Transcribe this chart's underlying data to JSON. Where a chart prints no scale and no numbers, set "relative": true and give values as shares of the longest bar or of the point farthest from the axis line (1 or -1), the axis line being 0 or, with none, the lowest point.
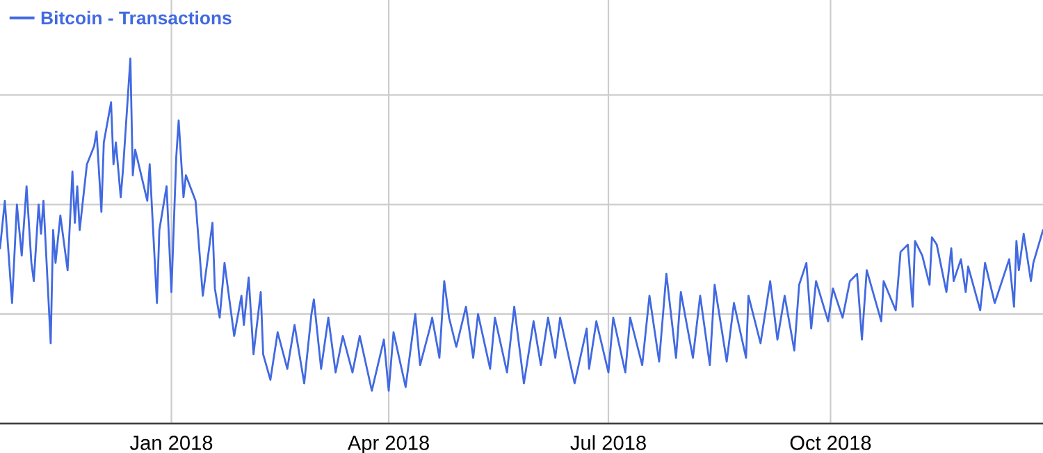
{
  "chart_data": {
    "type": "line",
    "relative": true,
    "grid": true,
    "legend": "top left",
    "tick_labels": "x",
    "marker": "none",
    "line_style": "solid",
    "xlim": [
      "2017-10-22",
      "2018-12-28"
    ],
    "xticks": [
      {
        "value": "2018-01-01",
        "label": "Jan 2018"
      },
      {
        "value": "2018-04-01",
        "label": "Apr 2018"
      },
      {
        "value": "2018-07-01",
        "label": "Jul 2018"
      },
      {
        "value": "2018-10-01",
        "label": "Oct 2018"
      }
    ],
    "series": [
      {
        "name": "Bitcoin - Transactions",
        "color": "#4169e1",
        "x": [
          "2017-10-22",
          "2017-10-24",
          "2017-10-27",
          "2017-10-29",
          "2017-10-31",
          "2017-11-02",
          "2017-11-04",
          "2017-11-05",
          "2017-11-07",
          "2017-11-08",
          "2017-11-09",
          "2017-11-12",
          "2017-11-13",
          "2017-11-14",
          "2017-11-16",
          "2017-11-19",
          "2017-11-21",
          "2017-11-22",
          "2017-11-23",
          "2017-11-24",
          "2017-11-27",
          "2017-11-30",
          "2017-12-01",
          "2017-12-03",
          "2017-12-04",
          "2017-12-07",
          "2017-12-08",
          "2017-12-09",
          "2017-12-11",
          "2017-12-12",
          "2017-12-15",
          "2017-12-16",
          "2017-12-17",
          "2017-12-22",
          "2017-12-23",
          "2017-12-26",
          "2017-12-27",
          "2017-12-30",
          "2018-01-01",
          "2018-01-03",
          "2018-01-04",
          "2018-01-06",
          "2018-01-07",
          "2018-01-11",
          "2018-01-14",
          "2018-01-18",
          "2018-01-19",
          "2018-01-21",
          "2018-01-23",
          "2018-01-27",
          "2018-01-30",
          "2018-01-31",
          "2018-02-02",
          "2018-02-04",
          "2018-02-07",
          "2018-02-08",
          "2018-02-11",
          "2018-02-14",
          "2018-02-18",
          "2018-02-21",
          "2018-02-25",
          "2018-02-28",
          "2018-03-01",
          "2018-03-04",
          "2018-03-07",
          "2018-03-10",
          "2018-03-13",
          "2018-03-17",
          "2018-03-20",
          "2018-03-25",
          "2018-03-30",
          "2018-04-01",
          "2018-04-03",
          "2018-04-08",
          "2018-04-12",
          "2018-04-14",
          "2018-04-18",
          "2018-04-19",
          "2018-04-22",
          "2018-04-24",
          "2018-04-26",
          "2018-04-29",
          "2018-05-03",
          "2018-05-06",
          "2018-05-08",
          "2018-05-13",
          "2018-05-15",
          "2018-05-20",
          "2018-05-23",
          "2018-05-27",
          "2018-05-31",
          "2018-06-03",
          "2018-06-06",
          "2018-06-09",
          "2018-06-11",
          "2018-06-17",
          "2018-06-22",
          "2018-06-23",
          "2018-06-26",
          "2018-07-01",
          "2018-07-03",
          "2018-07-08",
          "2018-07-10",
          "2018-07-15",
          "2018-07-18",
          "2018-07-22",
          "2018-07-25",
          "2018-07-29",
          "2018-07-31",
          "2018-08-05",
          "2018-08-08",
          "2018-08-12",
          "2018-08-14",
          "2018-08-19",
          "2018-08-22",
          "2018-08-27",
          "2018-08-28",
          "2018-09-02",
          "2018-09-06",
          "2018-09-09",
          "2018-09-12",
          "2018-09-16",
          "2018-09-18",
          "2018-09-21",
          "2018-09-23",
          "2018-09-25",
          "2018-09-30",
          "2018-10-02",
          "2018-10-06",
          "2018-10-09",
          "2018-10-12",
          "2018-10-14",
          "2018-10-16",
          "2018-10-22",
          "2018-10-23",
          "2018-10-28",
          "2018-10-30",
          "2018-11-02",
          "2018-11-04",
          "2018-11-05",
          "2018-11-08",
          "2018-11-11",
          "2018-11-12",
          "2018-11-14",
          "2018-11-18",
          "2018-11-20",
          "2018-11-21",
          "2018-11-24",
          "2018-11-26",
          "2018-11-27",
          "2018-12-02",
          "2018-12-04",
          "2018-12-08",
          "2018-12-12",
          "2018-12-14",
          "2018-12-16",
          "2018-12-17",
          "2018-12-18",
          "2018-12-20",
          "2018-12-23",
          "2018-12-24",
          "2018-12-28"
        ],
        "values": [
          0.48,
          0.61,
          0.33,
          0.6,
          0.46,
          0.65,
          0.44,
          0.39,
          0.6,
          0.52,
          0.61,
          0.22,
          0.53,
          0.44,
          0.57,
          0.42,
          0.69,
          0.55,
          0.65,
          0.53,
          0.71,
          0.76,
          0.8,
          0.58,
          0.77,
          0.88,
          0.71,
          0.77,
          0.62,
          0.7,
          1.0,
          0.68,
          0.75,
          0.61,
          0.71,
          0.33,
          0.53,
          0.65,
          0.36,
          0.73,
          0.83,
          0.62,
          0.68,
          0.61,
          0.35,
          0.55,
          0.37,
          0.29,
          0.44,
          0.24,
          0.35,
          0.27,
          0.4,
          0.19,
          0.36,
          0.19,
          0.12,
          0.25,
          0.15,
          0.27,
          0.11,
          0.3,
          0.34,
          0.15,
          0.29,
          0.14,
          0.24,
          0.14,
          0.24,
          0.09,
          0.23,
          0.09,
          0.25,
          0.1,
          0.3,
          0.16,
          0.26,
          0.29,
          0.18,
          0.39,
          0.29,
          0.21,
          0.32,
          0.18,
          0.3,
          0.15,
          0.29,
          0.14,
          0.32,
          0.11,
          0.28,
          0.16,
          0.29,
          0.18,
          0.29,
          0.11,
          0.26,
          0.15,
          0.28,
          0.14,
          0.29,
          0.14,
          0.29,
          0.16,
          0.35,
          0.17,
          0.41,
          0.18,
          0.36,
          0.18,
          0.35,
          0.16,
          0.38,
          0.17,
          0.33,
          0.18,
          0.35,
          0.22,
          0.39,
          0.23,
          0.35,
          0.2,
          0.38,
          0.44,
          0.26,
          0.39,
          0.28,
          0.37,
          0.29,
          0.39,
          0.41,
          0.23,
          0.42,
          0.28,
          0.39,
          0.31,
          0.47,
          0.49,
          0.32,
          0.5,
          0.46,
          0.38,
          0.51,
          0.49,
          0.36,
          0.48,
          0.39,
          0.45,
          0.36,
          0.43,
          0.31,
          0.44,
          0.33,
          0.41,
          0.45,
          0.32,
          0.5,
          0.42,
          0.52,
          0.39,
          0.44,
          0.53
        ]
      }
    ]
  }
}
